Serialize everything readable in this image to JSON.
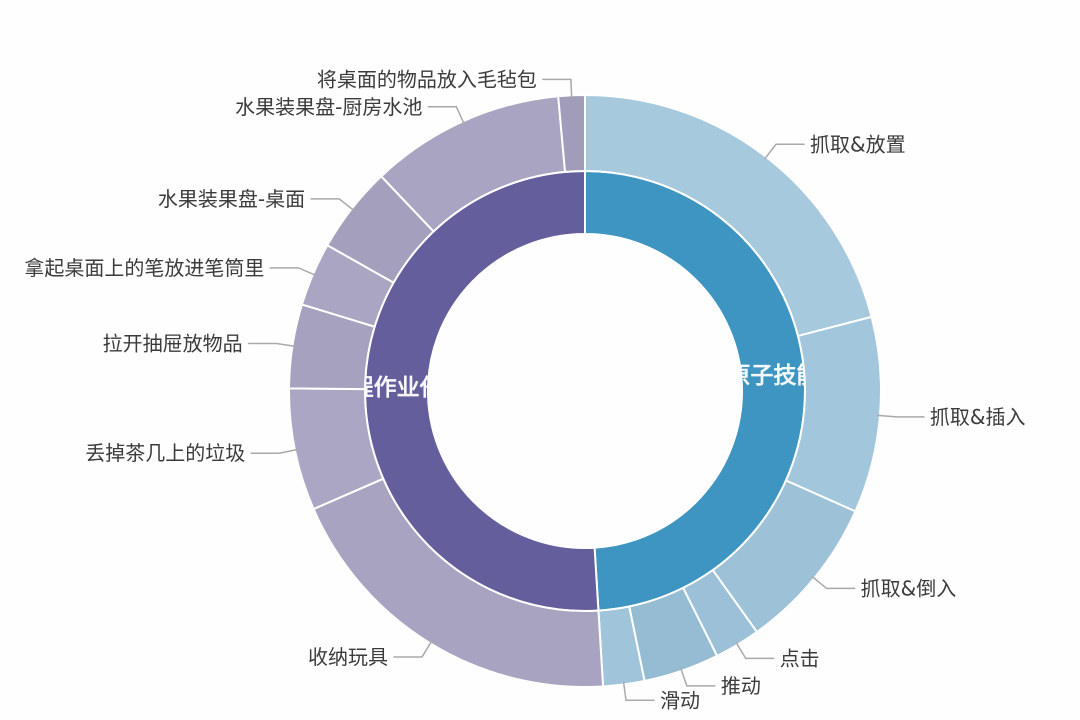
{
  "figure": {
    "background": "#fefefe",
    "label_color": "#3b3b3b",
    "leader_line_color": "#a9a9a9"
  },
  "chart_data": {
    "type": "sunburst",
    "title": "",
    "angle_unit": "degrees_clockwise_from_top",
    "legend_position": "none",
    "grid": false,
    "inner_ring": [
      {
        "label": "原子技能",
        "start_deg": 0,
        "end_deg": 176.5,
        "share_pct": 49.0,
        "color": "#3e95c1",
        "label_color": "#ffffff"
      },
      {
        "label": "长程作业任务",
        "start_deg": 176.5,
        "end_deg": 360,
        "share_pct": 51.0,
        "color": "#655e9c",
        "label_color": "#ffffff"
      }
    ],
    "outer_ring": [
      {
        "label": "抓取&放置",
        "parent": "原子技能",
        "start_deg": 0,
        "end_deg": 75.5,
        "share_pct": 21.0,
        "color": "#a7c9de"
      },
      {
        "label": "抓取&插入",
        "parent": "原子技能",
        "start_deg": 75.5,
        "end_deg": 114,
        "share_pct": 10.7,
        "color": "#a2c6dc"
      },
      {
        "label": "抓取&倒入",
        "parent": "原子技能",
        "start_deg": 114,
        "end_deg": 144.5,
        "share_pct": 8.5,
        "color": "#9dc2d8"
      },
      {
        "label": "点击",
        "parent": "原子技能",
        "start_deg": 144.5,
        "end_deg": 153.5,
        "share_pct": 2.5,
        "color": "#9cc0d7"
      },
      {
        "label": "推动",
        "parent": "原子技能",
        "start_deg": 153.5,
        "end_deg": 168.4,
        "share_pct": 4.1,
        "color": "#96bcd4"
      },
      {
        "label": "滑动",
        "parent": "原子技能",
        "start_deg": 168.4,
        "end_deg": 176.5,
        "share_pct": 2.3,
        "color": "#a0c4da"
      },
      {
        "label": "收纳玩具",
        "parent": "长程作业任务",
        "start_deg": 176.5,
        "end_deg": 246.5,
        "share_pct": 19.4,
        "color": "#a8a3c1"
      },
      {
        "label": "丢掉茶几上的垃圾",
        "parent": "长程作业任务",
        "start_deg": 246.5,
        "end_deg": 270.5,
        "share_pct": 6.7,
        "color": "#aba6c3"
      },
      {
        "label": "拉开抽屉放物品",
        "parent": "长程作业任务",
        "start_deg": 270.5,
        "end_deg": 287,
        "share_pct": 4.6,
        "color": "#a6a1bf"
      },
      {
        "label": "拿起桌面上的笔放进笔筒里",
        "parent": "长程作业任务",
        "start_deg": 287,
        "end_deg": 299.5,
        "share_pct": 3.5,
        "color": "#aaa5c2"
      },
      {
        "label": "水果装果盘-桌面",
        "parent": "长程作业任务",
        "start_deg": 299.5,
        "end_deg": 316.5,
        "share_pct": 4.7,
        "color": "#a49fbd"
      },
      {
        "label": "水果装果盘-厨房水池",
        "parent": "长程作业任务",
        "start_deg": 316.5,
        "end_deg": 354.8,
        "share_pct": 10.6,
        "color": "#a9a4c1"
      },
      {
        "label": "将桌面的物品放入毛毡包",
        "parent": "长程作业任务",
        "start_deg": 354.8,
        "end_deg": 360,
        "share_pct": 1.4,
        "color": "#a19cba"
      }
    ]
  }
}
